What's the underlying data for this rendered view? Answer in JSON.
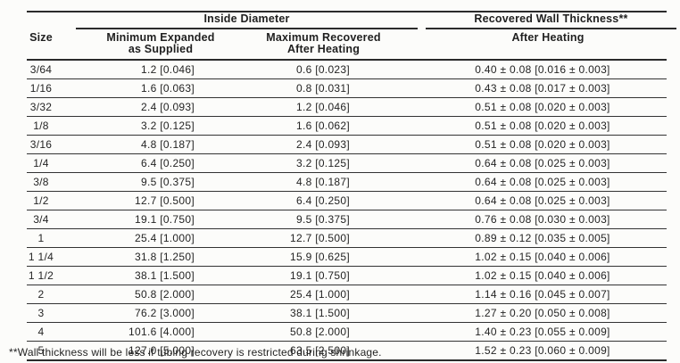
{
  "page": {
    "background": "#fcfcfa",
    "ink": "#232323"
  },
  "table": {
    "columns": {
      "size": "Size",
      "group_inside_diameter": "Inside Diameter",
      "group_recovered_wall": "Recovered Wall Thickness**",
      "min_expanded": [
        "Minimum Expanded",
        "as Supplied"
      ],
      "max_recovered": [
        "Maximum Recovered",
        "After Heating"
      ],
      "wall_after_heating": "After Heating"
    },
    "rows": [
      {
        "size": "3/64",
        "min_expanded": "1.2 [0.046]",
        "max_recovered": "0.6 [0.023]",
        "wall_thickness": "0.40 ± 0.08 [0.016 ± 0.003]"
      },
      {
        "size": "1/16",
        "min_expanded": "1.6 [0.063]",
        "max_recovered": "0.8 [0.031]",
        "wall_thickness": "0.43 ± 0.08 [0.017 ± 0.003]"
      },
      {
        "size": "3/32",
        "min_expanded": "2.4 [0.093]",
        "max_recovered": "1.2 [0.046]",
        "wall_thickness": "0.51 ± 0.08 [0.020 ± 0.003]"
      },
      {
        "size": "1/8",
        "min_expanded": "3.2 [0.125]",
        "max_recovered": "1.6 [0.062]",
        "wall_thickness": "0.51 ± 0.08 [0.020 ± 0.003]"
      },
      {
        "size": "3/16",
        "min_expanded": "4.8 [0.187]",
        "max_recovered": "2.4 [0.093]",
        "wall_thickness": "0.51 ± 0.08 [0.020 ± 0.003]"
      },
      {
        "size": "1/4",
        "min_expanded": "6.4 [0.250]",
        "max_recovered": "3.2 [0.125]",
        "wall_thickness": "0.64 ± 0.08 [0.025 ± 0.003]"
      },
      {
        "size": "3/8",
        "min_expanded": "9.5 [0.375]",
        "max_recovered": "4.8 [0.187]",
        "wall_thickness": "0.64 ± 0.08 [0.025 ± 0.003]"
      },
      {
        "size": "1/2",
        "min_expanded": "12.7 [0.500]",
        "max_recovered": "6.4 [0.250]",
        "wall_thickness": "0.64 ± 0.08 [0.025 ± 0.003]"
      },
      {
        "size": "3/4",
        "min_expanded": "19.1 [0.750]",
        "max_recovered": "9.5 [0.375]",
        "wall_thickness": "0.76 ± 0.08 [0.030 ± 0.003]"
      },
      {
        "size": "1",
        "min_expanded": "25.4 [1.000]",
        "max_recovered": "12.7 [0.500]",
        "wall_thickness": "0.89 ± 0.12 [0.035 ± 0.005]"
      },
      {
        "size": "1 1/4",
        "min_expanded": "31.8 [1.250]",
        "max_recovered": "15.9 [0.625]",
        "wall_thickness": "1.02 ± 0.15 [0.040 ± 0.006]"
      },
      {
        "size": "1 1/2",
        "min_expanded": "38.1 [1.500]",
        "max_recovered": "19.1 [0.750]",
        "wall_thickness": "1.02 ± 0.15 [0.040 ± 0.006]"
      },
      {
        "size": "2",
        "min_expanded": "50.8 [2.000]",
        "max_recovered": "25.4 [1.000]",
        "wall_thickness": "1.14 ± 0.16 [0.045 ± 0.007]"
      },
      {
        "size": "3",
        "min_expanded": "76.2 [3.000]",
        "max_recovered": "38.1 [1.500]",
        "wall_thickness": "1.27 ± 0.20 [0.050 ± 0.008]"
      },
      {
        "size": "4",
        "min_expanded": "101.6 [4.000]",
        "max_recovered": "50.8 [2.000]",
        "wall_thickness": "1.40 ± 0.23 [0.055 ± 0.009]"
      },
      {
        "size": "5",
        "min_expanded": "127.0 [5.000]",
        "max_recovered": "63.5 [2.500]",
        "wall_thickness": "1.52 ± 0.23 [0.060 ± 0.009]"
      }
    ],
    "footnote": "**Wall thickness will be less if tubing recovery is restricted during shrinkage."
  }
}
